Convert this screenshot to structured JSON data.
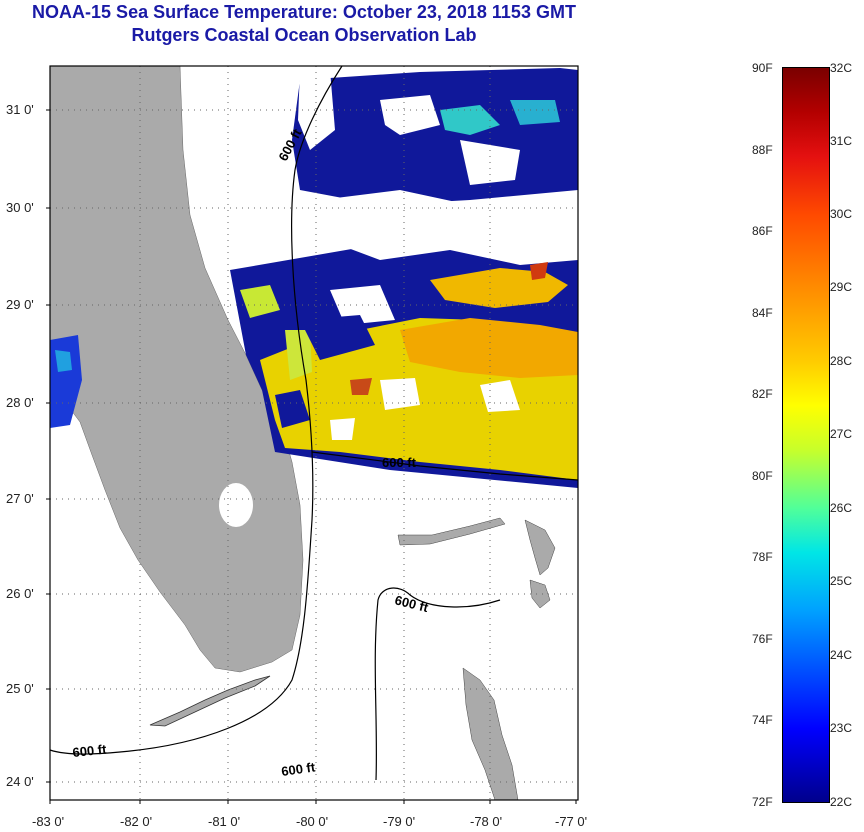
{
  "header": {
    "title": "NOAA-15 Sea Surface Temperature:  October 23, 2018 1153 GMT",
    "subtitle": "Rutgers Coastal Ocean Observation Lab"
  },
  "map": {
    "lat_labels": [
      "31 0'",
      "30 0'",
      "29 0'",
      "28 0'",
      "27 0'",
      "26 0'",
      "25 0'",
      "24 0'"
    ],
    "lon_labels": [
      "-83 0'",
      "-82 0'",
      "-81 0'",
      "-80 0'",
      "-79 0'",
      "-78 0'",
      "-77 0'"
    ],
    "isobath_labels": [
      "600 ft",
      "600 ft",
      "600 ft",
      "600 ft",
      "600 ft"
    ],
    "land_color": "#aaaaaa"
  },
  "colorbar": {
    "fahrenheit": [
      "90F",
      "88F",
      "86F",
      "84F",
      "82F",
      "80F",
      "78F",
      "76F",
      "74F",
      "72F"
    ],
    "celsius": [
      "32C",
      "31C",
      "30C",
      "29C",
      "28C",
      "27C",
      "26C",
      "25C",
      "24C",
      "23C",
      "22C"
    ]
  }
}
